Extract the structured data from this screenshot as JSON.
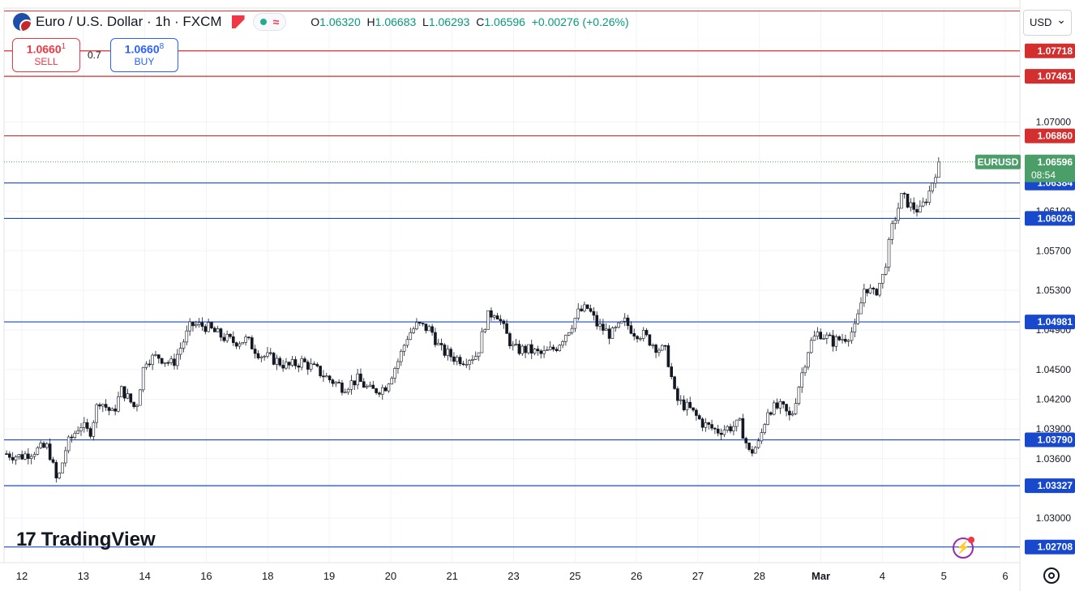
{
  "header": {
    "symbol_title": "Euro / U.S. Dollar · 1h · FXCM",
    "ohlc": {
      "open_label": "O",
      "open": "1.06320",
      "high_label": "H",
      "high": "1.06683",
      "low_label": "L",
      "low": "1.06293",
      "close_label": "C",
      "close": "1.06596",
      "change": "+0.00276 (+0.26%)"
    },
    "currency": "USD"
  },
  "trade": {
    "sell_price_main": "1.0660",
    "sell_price_sup": "1",
    "sell_label": "SELL",
    "spread": "0.7",
    "buy_price_main": "1.0660",
    "buy_price_sup": "8",
    "buy_label": "BUY"
  },
  "branding": {
    "logo_text": "TradingView",
    "logo_mark": "17"
  },
  "colors": {
    "up": "#089981",
    "down": "#f23645",
    "support": "#1848cc",
    "resistance": "#d32f2f",
    "last_price": "#4c9e69",
    "grid": "#f0f3fa",
    "text": "#131722"
  },
  "chart_data": {
    "type": "candlestick",
    "symbol": "EURUSD",
    "ylim": [
      1.0255,
      1.0815
    ],
    "x_ticks": [
      "12",
      "13",
      "14",
      "16",
      "18",
      "19",
      "20",
      "21",
      "23",
      "25",
      "26",
      "27",
      "28",
      "Mar",
      "4",
      "5",
      "6"
    ],
    "y_ticks": [
      "1.07000",
      "1.06100",
      "1.05700",
      "1.05300",
      "1.04900",
      "1.04500",
      "1.04200",
      "1.03900",
      "1.03600",
      "1.03000"
    ],
    "y_tick_values": [
      1.07,
      1.061,
      1.057,
      1.053,
      1.049,
      1.045,
      1.042,
      1.039,
      1.036,
      1.03
    ],
    "horizontal_levels": [
      {
        "value": 1.07718,
        "label": "1.07718",
        "kind": "resistance"
      },
      {
        "value": 1.07461,
        "label": "1.07461",
        "kind": "resistance"
      },
      {
        "value": 1.0686,
        "label": "1.06860",
        "kind": "resistance"
      },
      {
        "value": 1.06384,
        "label": "1.06384",
        "kind": "support"
      },
      {
        "value": 1.06026,
        "label": "1.06026",
        "kind": "support"
      },
      {
        "value": 1.04981,
        "label": "1.04981",
        "kind": "support"
      },
      {
        "value": 1.0379,
        "label": "1.03790",
        "kind": "support"
      },
      {
        "value": 1.03327,
        "label": "1.03327",
        "kind": "support"
      },
      {
        "value": 1.02708,
        "label": "1.02708",
        "kind": "support"
      }
    ],
    "top_border_level": 1.0812,
    "last_price": {
      "value": 1.06596,
      "label": "1.06596",
      "symbol_label": "EURUSD",
      "countdown": "08:54"
    },
    "price_path": [
      [
        0.0,
        1.0365
      ],
      [
        0.6,
        1.0362
      ],
      [
        1.2,
        1.0368
      ],
      [
        1.8,
        1.0372
      ],
      [
        2.2,
        1.0335
      ],
      [
        2.6,
        1.0373
      ],
      [
        3.2,
        1.0395
      ],
      [
        3.6,
        1.0385
      ],
      [
        4.0,
        1.042
      ],
      [
        4.6,
        1.0405
      ],
      [
        5.0,
        1.043
      ],
      [
        5.6,
        1.041
      ],
      [
        6.0,
        1.046
      ],
      [
        6.6,
        1.0463
      ],
      [
        7.2,
        1.0455
      ],
      [
        7.6,
        1.0475
      ],
      [
        8.0,
        1.0495
      ],
      [
        8.6,
        1.0494
      ],
      [
        9.2,
        1.0485
      ],
      [
        9.8,
        1.0478
      ],
      [
        10.4,
        1.048
      ],
      [
        11.0,
        1.0465
      ],
      [
        11.6,
        1.046
      ],
      [
        12.2,
        1.0453
      ],
      [
        12.8,
        1.0458
      ],
      [
        13.4,
        1.045
      ],
      [
        14.0,
        1.044
      ],
      [
        14.6,
        1.0432
      ],
      [
        15.2,
        1.044
      ],
      [
        15.8,
        1.0428
      ],
      [
        16.4,
        1.0432
      ],
      [
        17.0,
        1.046
      ],
      [
        17.4,
        1.0485
      ],
      [
        17.8,
        1.0495
      ],
      [
        18.4,
        1.049
      ],
      [
        18.8,
        1.047
      ],
      [
        19.4,
        1.0462
      ],
      [
        19.8,
        1.046
      ],
      [
        20.4,
        1.0465
      ],
      [
        20.8,
        1.0502
      ],
      [
        21.2,
        1.051
      ],
      [
        21.6,
        1.0488
      ],
      [
        22.0,
        1.047
      ],
      [
        22.6,
        1.047
      ],
      [
        23.2,
        1.0465
      ],
      [
        23.8,
        1.0472
      ],
      [
        24.4,
        1.0492
      ],
      [
        24.8,
        1.0508
      ],
      [
        25.2,
        1.0512
      ],
      [
        25.6,
        1.0495
      ],
      [
        26.2,
        1.0485
      ],
      [
        26.8,
        1.0498
      ],
      [
        27.2,
        1.0488
      ],
      [
        27.6,
        1.0485
      ],
      [
        28.2,
        1.0472
      ],
      [
        28.6,
        1.0468
      ],
      [
        29.0,
        1.042
      ],
      [
        29.6,
        1.041
      ],
      [
        30.2,
        1.0395
      ],
      [
        30.8,
        1.0388
      ],
      [
        31.4,
        1.0392
      ],
      [
        31.8,
        1.0395
      ],
      [
        32.2,
        1.0365
      ],
      [
        32.6,
        1.0375
      ],
      [
        33.0,
        1.041
      ],
      [
        33.6,
        1.0412
      ],
      [
        34.0,
        1.04
      ],
      [
        34.4,
        1.044
      ],
      [
        34.8,
        1.0475
      ],
      [
        35.2,
        1.0488
      ],
      [
        35.8,
        1.0478
      ],
      [
        36.4,
        1.0483
      ],
      [
        36.8,
        1.0492
      ],
      [
        37.2,
        1.0535
      ],
      [
        37.6,
        1.0525
      ],
      [
        38.0,
        1.0545
      ],
      [
        38.4,
        1.0595
      ],
      [
        38.8,
        1.0625
      ],
      [
        39.2,
        1.0615
      ],
      [
        39.6,
        1.061
      ],
      [
        40.0,
        1.063
      ],
      [
        40.4,
        1.066
      ]
    ],
    "x_extent": [
      0.0,
      41.6
    ]
  }
}
